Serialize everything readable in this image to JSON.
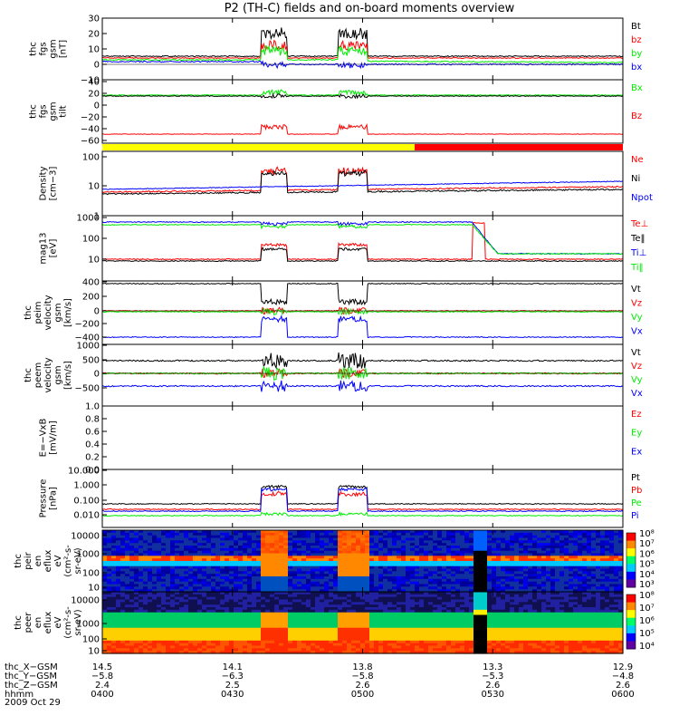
{
  "title": "P2 (TH-C) fields and on-board moments overview",
  "colors": {
    "black": "#000000",
    "red": "#ff0000",
    "green": "#00ee00",
    "blue": "#0000ff",
    "yellow": "#ffff00"
  },
  "chart_data": [
    {
      "id": "fgs",
      "type": "line",
      "ylabel": [
        "thc",
        "fgs",
        "gsm",
        "[nT]"
      ],
      "yticks": [
        "30",
        "20",
        "10",
        "0",
        "−10"
      ],
      "legend": [
        {
          "name": "Bt",
          "color": "#000000"
        },
        {
          "name": "bz",
          "color": "#ff0000"
        },
        {
          "name": "by",
          "color": "#00ee00"
        },
        {
          "name": "bx",
          "color": "#0000ff"
        }
      ]
    },
    {
      "id": "fgs_tilt",
      "type": "line",
      "ylabel": [
        "thc",
        "fgs",
        "gsm",
        "tilt"
      ],
      "yticks": [
        "40",
        "20",
        "0",
        "−20",
        "−40",
        "−60"
      ],
      "legend": [
        {
          "name": "Bx",
          "color": "#00ee00"
        },
        {
          "name": "Bz",
          "color": "#ff0000"
        }
      ]
    },
    {
      "id": "flag",
      "type": "bar",
      "segments": [
        {
          "from": "0400",
          "to": "0512",
          "color": "#ffff00"
        },
        {
          "from": "0512",
          "to": "0600",
          "color": "#ff0000"
        }
      ]
    },
    {
      "id": "density",
      "type": "line",
      "log": true,
      "ylabel": [
        "Density",
        "[cm−3]"
      ],
      "yticks": [
        "100",
        "10",
        "1"
      ],
      "legend": [
        {
          "name": "Ne",
          "color": "#ff0000"
        },
        {
          "name": "Ni",
          "color": "#000000"
        },
        {
          "name": "Npot",
          "color": "#0000ff"
        }
      ]
    },
    {
      "id": "temp",
      "type": "line",
      "log": true,
      "ylabel": [
        "mag13",
        "[eV]"
      ],
      "yticks": [
        "1000",
        "100",
        "10"
      ],
      "legend": [
        {
          "name": "Te⊥",
          "color": "#ff0000"
        },
        {
          "name": "Te‖",
          "color": "#000000"
        },
        {
          "name": "Ti⊥",
          "color": "#0000ff"
        },
        {
          "name": "Ti‖",
          "color": "#00ee00"
        }
      ]
    },
    {
      "id": "peim",
      "type": "line",
      "ylabel": [
        "thc",
        "peim",
        "velocity",
        "gsm",
        "[km/s]"
      ],
      "yticks": [
        "400",
        "200",
        "0",
        "−200",
        "−400"
      ],
      "legend": [
        {
          "name": "Vt",
          "color": "#000000"
        },
        {
          "name": "Vz",
          "color": "#ff0000"
        },
        {
          "name": "Vy",
          "color": "#00ee00"
        },
        {
          "name": "Vx",
          "color": "#0000ff"
        }
      ]
    },
    {
      "id": "peem",
      "type": "line",
      "ylabel": [
        "thc",
        "peem",
        "velocity",
        "gsm",
        "[km/s]"
      ],
      "yticks": [
        "1000",
        "500",
        "0",
        "−500"
      ],
      "legend": [
        {
          "name": "Vt",
          "color": "#000000"
        },
        {
          "name": "Vz",
          "color": "#ff0000"
        },
        {
          "name": "Vy",
          "color": "#00ee00"
        },
        {
          "name": "Vx",
          "color": "#0000ff"
        }
      ]
    },
    {
      "id": "efield",
      "type": "line",
      "ylabel": [
        "E=−VxB",
        "[mV/m]"
      ],
      "yticks": [
        "1.0",
        "0.8",
        "0.6",
        "0.4",
        "0.2",
        "0.0"
      ],
      "legend": [
        {
          "name": "Ez",
          "color": "#ff0000"
        },
        {
          "name": "Ey",
          "color": "#00ee00"
        },
        {
          "name": "Ex",
          "color": "#0000ff"
        }
      ]
    },
    {
      "id": "pressure",
      "type": "line",
      "log": true,
      "ylabel": [
        "Pressure",
        "[nPa]"
      ],
      "yticks": [
        "10.000",
        "1.000",
        "0.100",
        "0.010"
      ],
      "legend": [
        {
          "name": "Pt",
          "color": "#000000"
        },
        {
          "name": "Pb",
          "color": "#ff0000"
        },
        {
          "name": "Pe",
          "color": "#00ee00"
        },
        {
          "name": "Pi",
          "color": "#0000ff"
        }
      ]
    },
    {
      "id": "peir",
      "type": "heatmap",
      "ylabel": [
        "thc",
        "peir",
        "en",
        "eflux",
        "eV",
        "(cm²-s-",
        "sr-eV)"
      ],
      "yticks": [
        "10000",
        "1000",
        "100",
        "10"
      ],
      "colorbar": [
        "10⁸",
        "10⁷",
        "10⁶",
        "10⁵",
        "10⁴",
        "10³"
      ]
    },
    {
      "id": "peer",
      "type": "heatmap",
      "ylabel": [
        "thc",
        "peer",
        "en",
        "eflux",
        "eV",
        "(cm²-s-",
        "sr-eV)"
      ],
      "yticks": [
        "10000",
        "1000",
        "100",
        "10"
      ],
      "colorbar": [
        "10⁸",
        "10⁷",
        "10⁶",
        "10⁵",
        "10⁴"
      ]
    }
  ],
  "footer": {
    "rows": [
      {
        "label": "thc_X−GSM",
        "values": [
          "14.5",
          "14.1",
          "13.8",
          "13.3",
          "12.9"
        ]
      },
      {
        "label": "thc_Y−GSM",
        "values": [
          "−5.8",
          "−6.3",
          "−5.8",
          "−5.3",
          "−4.8"
        ]
      },
      {
        "label": "thc_Z−GSM",
        "values": [
          "2.4",
          "2.5",
          "2.6",
          "2.6",
          "2.6"
        ]
      },
      {
        "label": "hhmm",
        "values": [
          "0400",
          "0430",
          "0500",
          "0530",
          "0600"
        ]
      }
    ],
    "date": "2009 Oct 29"
  }
}
